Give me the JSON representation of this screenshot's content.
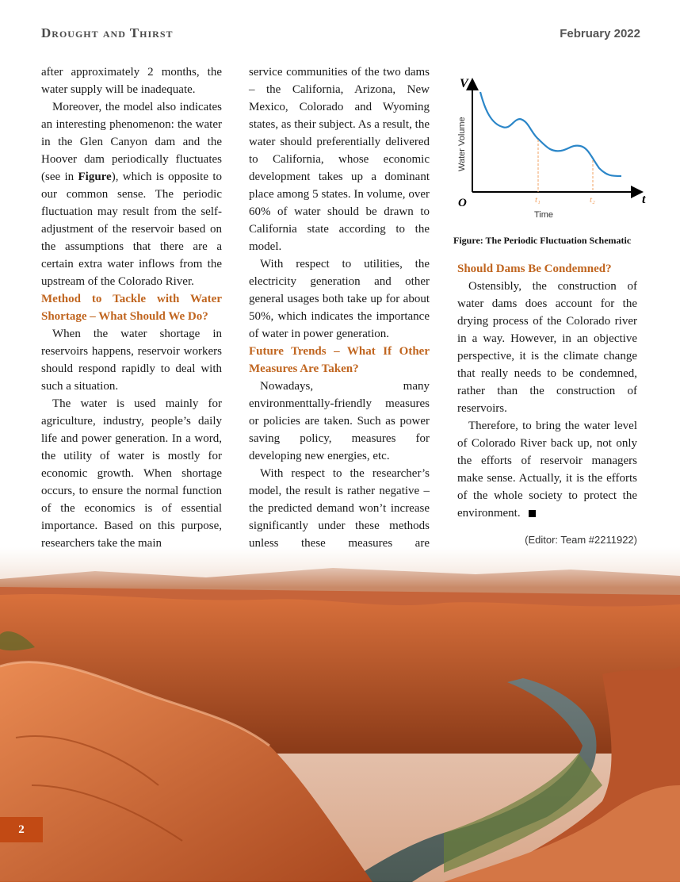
{
  "header": {
    "title": "Drought and Thirst",
    "date": "February 2022"
  },
  "page_number": "2",
  "col1": {
    "p1": "after approximately 2 months, the water supply will be inadequate.",
    "p2a": "Moreover, the model also indicates an interesting phenomenon: the water in the Glen Canyon dam and the Hoover dam periodically fluctuates (see in ",
    "p2b": "Figure",
    "p2c": "), which is opposite to our common sense. The periodic fluctuation may result from the self-adjustment of the reservoir based on the assumptions that there are a certain extra water inflows from the upstream of the Colorado River.",
    "h1": "Method to Tackle with Water Shortage – What Should We Do?",
    "p3": "When the water shortage in reservoirs happens, reservoir workers should respond rapidly to deal with such a situation.",
    "p4": "The water is used mainly for agriculture, industry, people’s daily life and power generation. In a word, the utility of water is mostly for economic growth. When shortage occurs, to ensure the normal function of the economics is of essential importance. Based on this purpose, researchers take the main"
  },
  "col2": {
    "p1": "service communities of the two dams – the California, Arizona, New Mexico, Colorado and Wyoming states, as their subject. As a result, the water should preferentially delivered to California, whose economic development takes up a dominant place among 5 states. In volume, over 60% of water should be drawn to California state according to the model.",
    "p2": "With respect to utilities, the electricity generation and other general usages both take up for about 50%, which indicates the importance of water in power generation.",
    "h1": "Future Trends – What If Other Measures Are Taken?",
    "p3": "Nowadays, many environmenttally-friendly measures or policies are taken. Such as power saving policy, measures for developing new energies, etc.",
    "p4": "With respect to the researcher’s model, the result is rather negative – the predicted demand won’t increase significantly under these methods unless these measures are implemented with extreme force."
  },
  "col3": {
    "h1": "Should Dams Be Condemned?",
    "p1": "Ostensibly, the construction of water dams does account for the drying process of the Colorado river in a way. However, in an objective perspective, it is the climate change that really needs to be condemned, rather than the construction of reservoirs.",
    "p2": "Therefore, to bring the water level of Colorado River back up, not only the efforts of reservoir managers make sense. Actually, it is the efforts of the whole society to protect the environment.",
    "editor": "(Editor: Team #2211922)"
  },
  "figure": {
    "caption": "Figure: The Periodic Fluctuation Schematic",
    "y_axis_letter": "V",
    "x_axis_letter": "t",
    "origin": "O",
    "y_label": "Water Volume",
    "x_label": "Time",
    "t1": "t₁",
    "t2": "t₂",
    "curve_color": "#2b86c8",
    "marker_color": "#f0a060"
  },
  "colors": {
    "heading": "#c0651f",
    "page_badge": "#c24a14"
  }
}
